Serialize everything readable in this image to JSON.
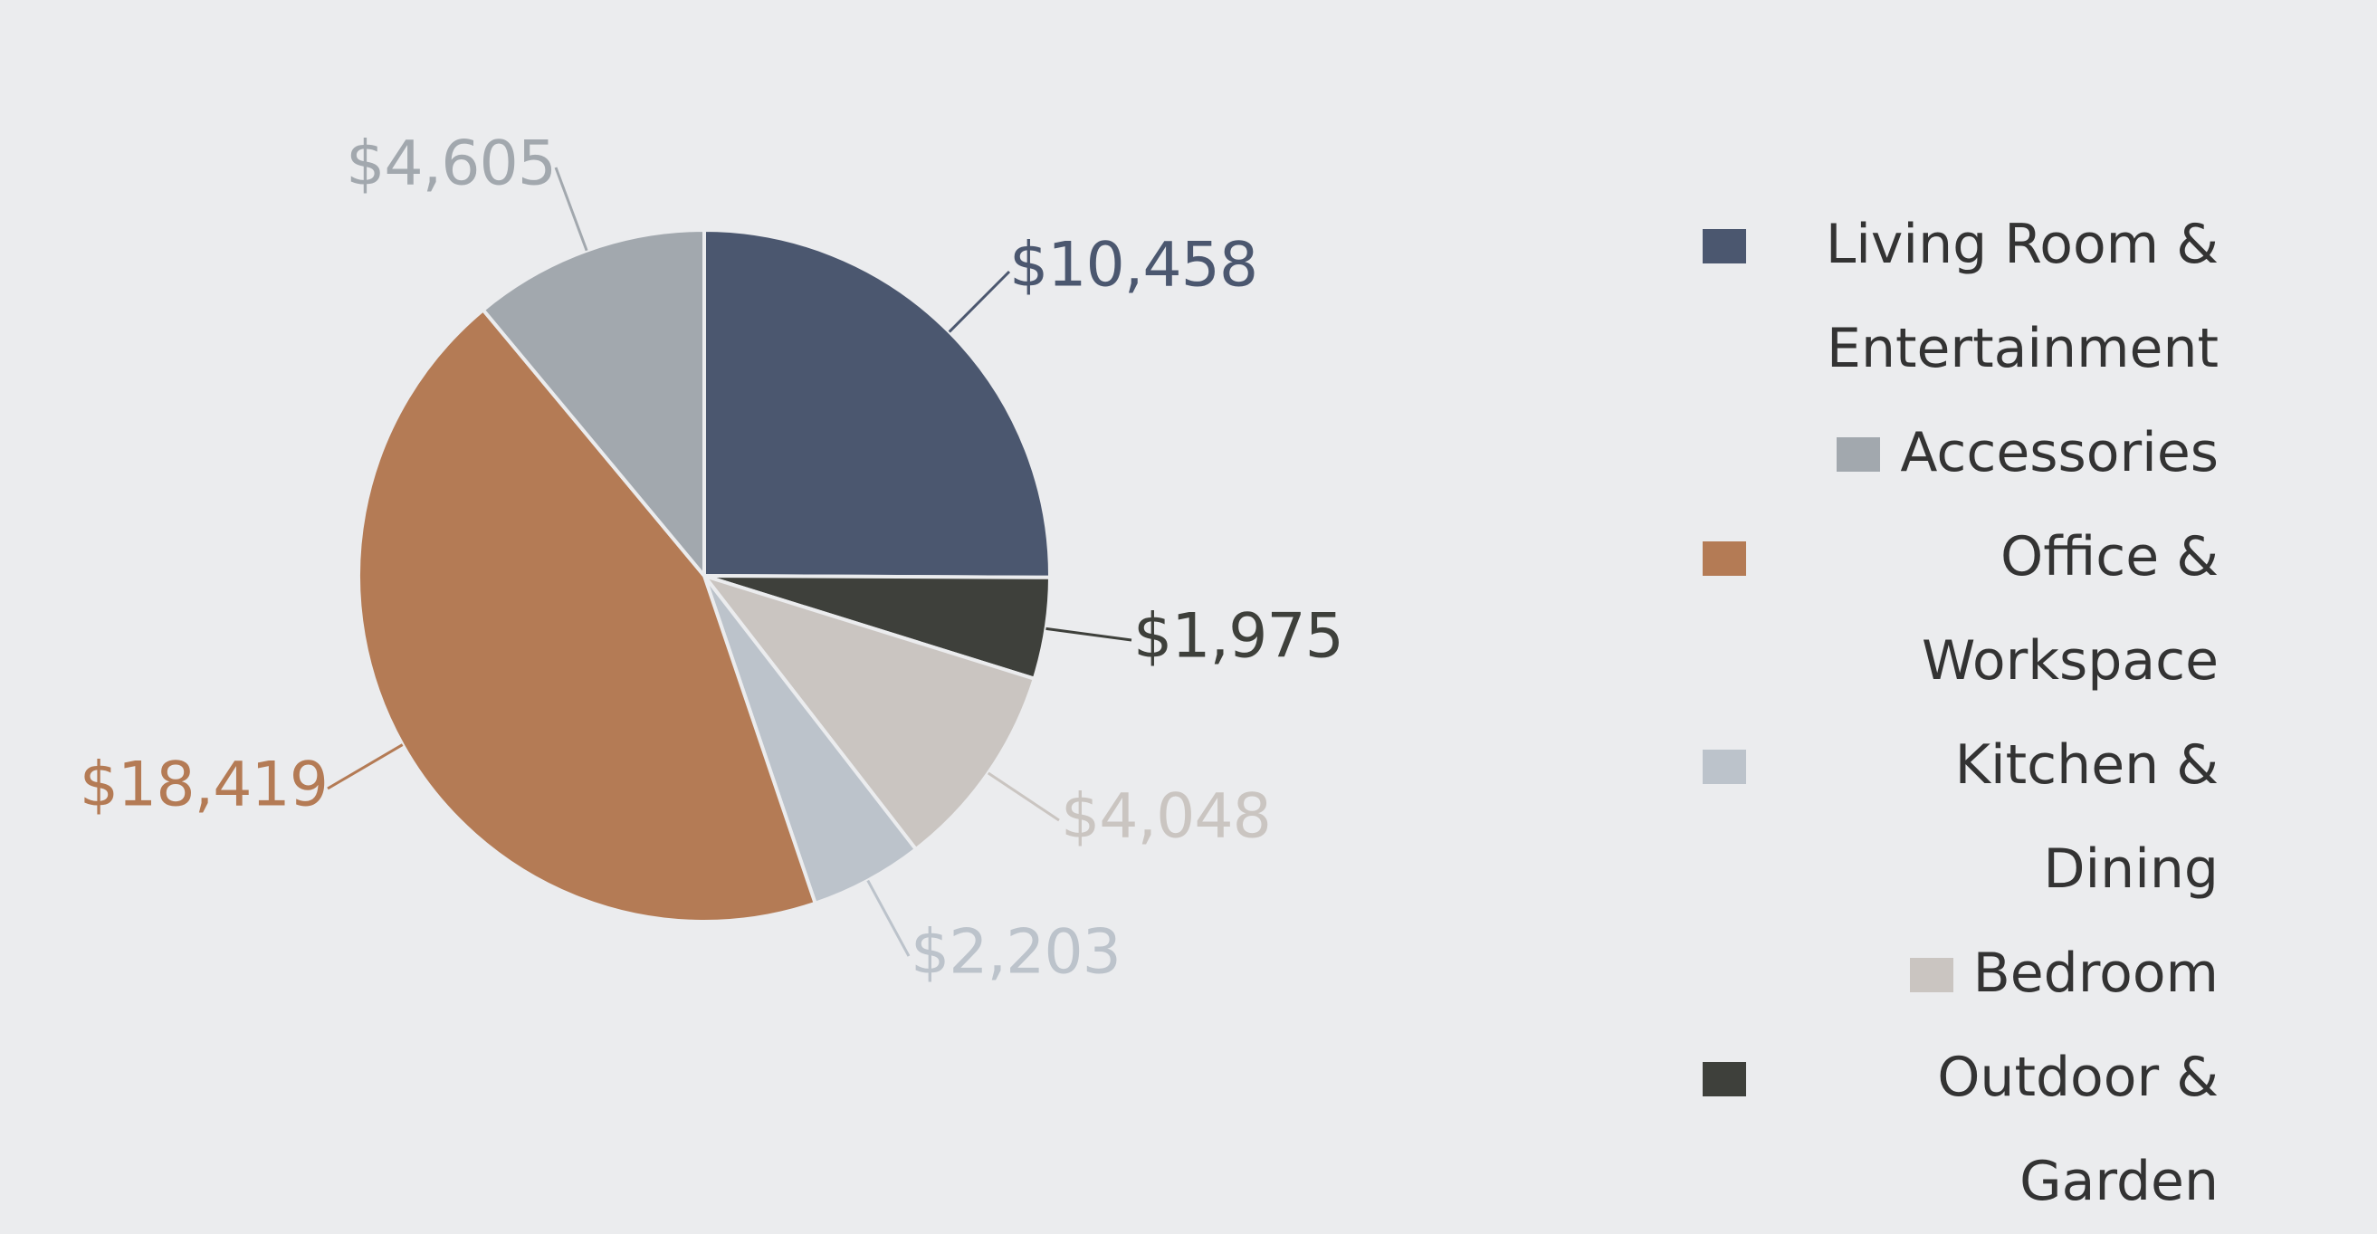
{
  "chart_data": {
    "type": "pie",
    "title": "",
    "slices": [
      {
        "label": "Living Room & Entertainment",
        "value": 10458,
        "display": "$10,458",
        "color": "#4b576f"
      },
      {
        "label": "Outdoor & Garden",
        "value": 1975,
        "display": "$1,975",
        "color": "#3e403b"
      },
      {
        "label": "Bedroom",
        "value": 4048,
        "display": "$4,048",
        "color": "#cac5c1"
      },
      {
        "label": "Kitchen & Dining",
        "value": 2203,
        "display": "$2,203",
        "color": "#bcc3cb"
      },
      {
        "label": "Office & Workspace",
        "value": 18419,
        "display": "$18,419",
        "color": "#b47b55"
      },
      {
        "label": "Accessories",
        "value": 4605,
        "display": "$4,605",
        "color": "#a2a8ae"
      }
    ],
    "start_angle": "12 o'clock",
    "direction": "clockwise",
    "legend": {
      "placement": "right",
      "entries": [
        {
          "label": "Living Room & Entertainment",
          "color": "#4b576f"
        },
        {
          "label": "Accessories",
          "color": "#a2a8ae"
        },
        {
          "label": "Office & Workspace",
          "color": "#b47b55"
        },
        {
          "label": "Kitchen & Dining",
          "color": "#bcc3cb"
        },
        {
          "label": "Bedroom",
          "color": "#cac5c1"
        },
        {
          "label": "Outdoor & Garden",
          "color": "#3e403b"
        }
      ]
    }
  },
  "colors": {
    "background": "#ebecee",
    "legend_text": "#333333"
  }
}
